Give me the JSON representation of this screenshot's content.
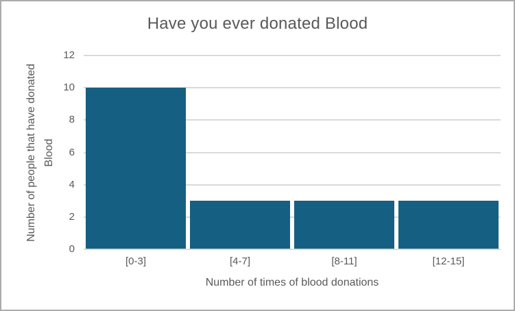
{
  "window": {
    "border_color": "#ABABAB",
    "background_color": "#FFFFFF"
  },
  "chart_data": {
    "type": "bar",
    "title": "Have you ever donated Blood",
    "categories": [
      "[0-3]",
      "[4-7]",
      "[8-11]",
      "[12-15]"
    ],
    "values": [
      10,
      3,
      3,
      3
    ],
    "xlabel": "Number of times of blood donations",
    "ylabel": "Number of  people that have donated Blood",
    "ylabel_lines": [
      "Number of  people that have donated",
      "Blood"
    ],
    "ylim": [
      0,
      12
    ],
    "yticks": [
      0,
      2,
      4,
      6,
      8,
      10,
      12
    ],
    "grid": "horizontal",
    "legend": "none",
    "bar_color": "#156082",
    "gridline_color": "#D9D9D9",
    "axis_line_color": "#D9D9D9",
    "text_color": "#595959"
  }
}
